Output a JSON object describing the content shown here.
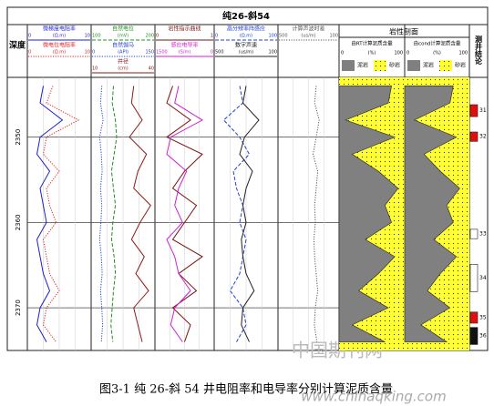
{
  "title": "纯26-斜54",
  "depth_header": "深度",
  "conclusion_header": "测井结论",
  "depth": {
    "ylim": [
      2343,
      2375
    ],
    "ticks": [
      2350,
      2360,
      2370
    ]
  },
  "samples": [
    2344,
    2346,
    2348,
    2350,
    2352,
    2354,
    2356,
    2358,
    2360,
    2362,
    2364,
    2366,
    2368,
    2370,
    2372,
    2374
  ],
  "tracks": [
    {
      "curves": [
        {
          "name": "微梯度电阻率",
          "unit": "(Ω.m)",
          "xlim": [
            0,
            10
          ],
          "color": "#1f1fd0",
          "style": "solid",
          "values": [
            2.5,
            2,
            5.5,
            2,
            1.5,
            3.5,
            2,
            2.5,
            3,
            1.5,
            2,
            2.5,
            3.5,
            2,
            1.5,
            3
          ]
        },
        {
          "name": "微电位电阻率",
          "unit": "(Ω.m)",
          "xlim": [
            0,
            10
          ],
          "color": "#e02020",
          "style": "dotted",
          "values": [
            4,
            3,
            8,
            3,
            2.5,
            5,
            3,
            3.5,
            4.5,
            2.5,
            3,
            3.5,
            5,
            3,
            2.5,
            4.5
          ]
        }
      ]
    },
    {
      "curves": [
        {
          "name": "自然电位",
          "unit": "(mV)",
          "xlim": [
            100,
            200
          ],
          "color": "#209020",
          "style": "dashed",
          "values": [
            135,
            133,
            138,
            140,
            136,
            132,
            135,
            138,
            134,
            132,
            136,
            138,
            135,
            133,
            131,
            134
          ]
        },
        {
          "name": "自然伽马",
          "unit": "(API)",
          "xlim": [
            0,
            150
          ],
          "color": "#2040d0",
          "style": "dotted",
          "values": [
            25,
            22,
            28,
            20,
            24,
            26,
            22,
            25,
            23,
            20,
            24,
            26,
            22,
            25,
            27,
            24
          ]
        },
        {
          "name": "井径",
          "unit": "(cm)",
          "xlim": [
            10,
            40
          ],
          "color": "#8b1a1a",
          "style": "solid",
          "values": [
            30,
            29,
            34,
            28,
            36,
            32,
            30,
            38,
            33,
            29,
            35,
            31,
            37,
            30,
            32,
            34
          ]
        }
      ]
    },
    {
      "curves": [
        {
          "name": "岩性指示曲线",
          "unit": "",
          "xlim": [
            0,
            1
          ],
          "color": "#7a1010",
          "style": "solid",
          "values": [
            0.3,
            0.2,
            0.6,
            0.2,
            0.8,
            0.5,
            0.3,
            0.7,
            0.5,
            0.3,
            0.8,
            0.4,
            0.7,
            0.3,
            0.6,
            0.5
          ]
        },
        {
          "name": "感应电导率",
          "unit": "(S/m)",
          "xlim": [
            1500,
            0
          ],
          "color": "#d020d0",
          "style": "solid",
          "values": [
            900,
            1000,
            300,
            1100,
            1200,
            700,
            900,
            1000,
            800,
            1200,
            1000,
            900,
            600,
            1000,
            1100,
            800
          ]
        }
      ]
    },
    {
      "curves": [
        {
          "name": "高分辨率阵感应",
          "unit": "(Ω.m)",
          "xlim": [
            0,
            100
          ],
          "color": "#2040d0",
          "style": "dashed",
          "values": [
            40,
            45,
            15,
            40,
            55,
            30,
            35,
            45,
            40,
            50,
            45,
            40,
            25,
            45,
            50,
            35
          ]
        },
        {
          "name": "数字声速",
          "unit": "(us/m)",
          "xlim": [
            500,
            100
          ],
          "color": "#202020",
          "style": "solid",
          "values": [
            300,
            320,
            220,
            310,
            340,
            260,
            300,
            320,
            300,
            330,
            320,
            300,
            250,
            320,
            330,
            280
          ]
        }
      ]
    },
    {
      "curves": [
        {
          "name": "计算声波时差",
          "unit": "(us/m)",
          "xlim": [
            500,
            100
          ],
          "color": "#555555",
          "style": "dotted",
          "values": [
            250,
            260,
            230,
            250,
            270,
            240,
            250,
            260,
            255,
            265,
            260,
            250,
            240,
            255,
            262,
            245
          ]
        }
      ]
    }
  ],
  "lithology": {
    "header": "岩性剖面",
    "legend": [
      "泥岩",
      "砂岩"
    ],
    "unit": "(%)",
    "xlim": [
      0,
      100
    ],
    "columns": [
      {
        "name": "由RT计算泥质含量",
        "values": [
          80,
          75,
          10,
          85,
          20,
          60,
          90,
          70,
          80,
          40,
          85,
          60,
          30,
          75,
          20,
          70
        ]
      },
      {
        "name": "由cond计算泥质含量",
        "values": [
          75,
          70,
          15,
          80,
          30,
          55,
          85,
          65,
          75,
          45,
          80,
          55,
          35,
          70,
          25,
          65
        ]
      }
    ]
  },
  "layers": [
    {
      "label": "31",
      "top": 2346.2,
      "bottom": 2347.6,
      "color": "#e01010"
    },
    {
      "label": "32",
      "top": 2349.4,
      "bottom": 2350.5,
      "color": "#e01010"
    },
    {
      "label": "33",
      "top": 2360.8,
      "bottom": 2361.9,
      "color": "#ffffff"
    },
    {
      "label": "34",
      "top": 2364.9,
      "bottom": 2368.1,
      "color": "#ffffff"
    },
    {
      "label": "35",
      "top": 2370.5,
      "bottom": 2371.8,
      "color": "#e01010"
    },
    {
      "label": "36",
      "top": 2372.3,
      "bottom": 2374.3,
      "color": "#111111"
    }
  ],
  "caption": "图3-1 纯 26-斜 54 井电阻率和电导率分别计算泥质含量",
  "watermarks": [
    "中国期刊网",
    "www.chinaqking.com"
  ]
}
